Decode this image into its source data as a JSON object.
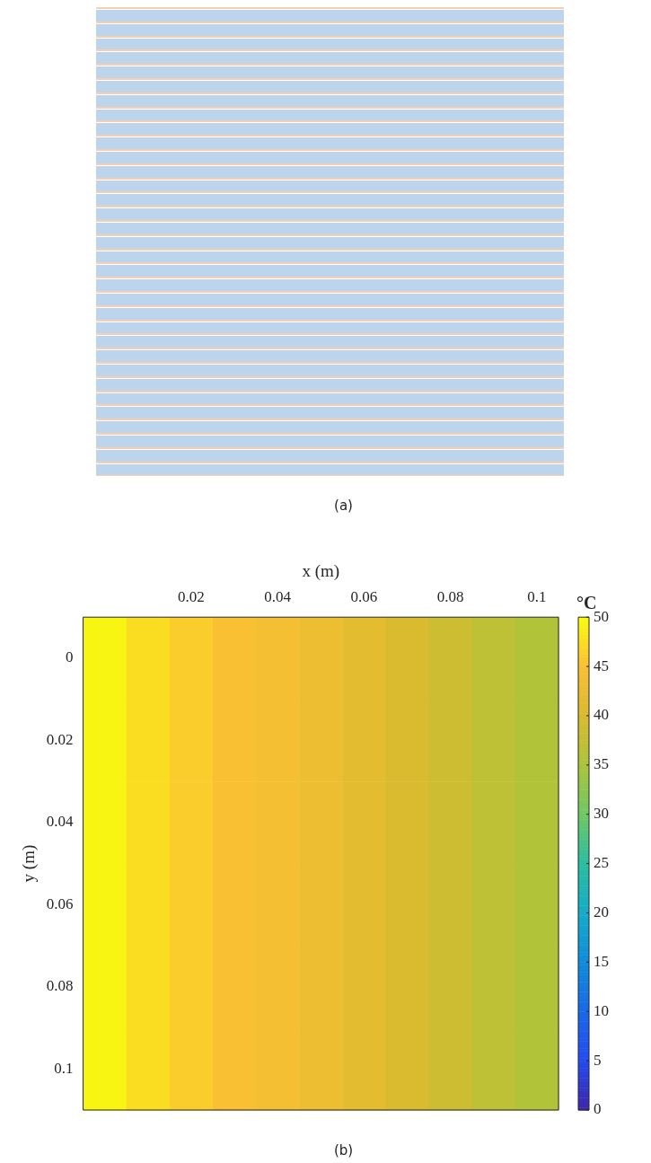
{
  "chart_data": {
    "type": "heatmap",
    "categories": [
      null,
      null,
      "0.02",
      null,
      "0.04",
      null,
      "0.06",
      null,
      "0.08",
      null,
      "0.1"
    ],
    "y_categories": [
      "0",
      "0.02",
      "0.04",
      "0.06",
      "0.08",
      "0.1"
    ],
    "cells": [
      [
        49.5,
        47.5,
        46,
        45,
        44,
        43,
        41.5,
        40,
        38.5,
        37,
        35.5
      ],
      [
        49.5,
        47.5,
        46,
        45,
        44,
        43,
        41.5,
        40,
        38.5,
        37,
        35.5
      ],
      [
        49.5,
        47.5,
        46,
        45,
        44,
        43,
        41.5,
        40,
        38.5,
        37,
        35.5
      ],
      [
        49.5,
        47.5,
        46,
        45,
        44,
        43,
        41.5,
        40,
        38.5,
        37,
        35.5
      ],
      [
        49.5,
        47.5,
        46,
        45,
        44,
        43,
        41.5,
        40,
        38.5,
        37,
        35.5
      ],
      [
        49.5,
        47.5,
        46,
        45,
        44,
        43,
        41.5,
        40,
        38.5,
        37,
        35.5
      ]
    ],
    "xlabel": "x (m)",
    "ylabel": "y (m)",
    "clabel": "°C",
    "clim": [
      0,
      50
    ],
    "cticks": [
      0,
      5,
      10,
      15,
      20,
      25,
      30,
      35,
      40,
      45,
      50
    ],
    "annotations": [
      "(a)",
      "(b)"
    ]
  }
}
